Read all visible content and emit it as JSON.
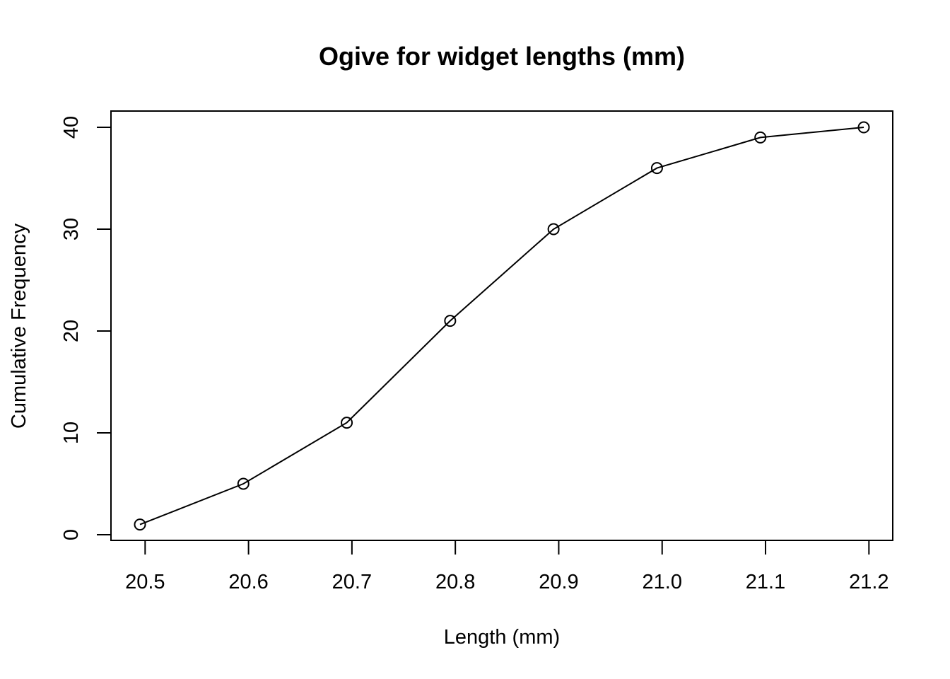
{
  "chart_data": {
    "type": "line",
    "title": "Ogive for widget lengths (mm)",
    "xlabel": "Length (mm)",
    "ylabel": "Cumulative Frequency",
    "x_ticks": [
      "20.5",
      "20.6",
      "20.7",
      "20.8",
      "20.9",
      "21.0",
      "21.1",
      "21.2"
    ],
    "y_ticks": [
      "0",
      "10",
      "20",
      "30",
      "40"
    ],
    "xlim": [
      20.467,
      21.222
    ],
    "ylim": [
      0,
      40
    ],
    "grid": false,
    "marker": "open-circle",
    "line_color": "#000000",
    "series": [
      {
        "x": [
          20.495,
          20.595,
          20.695,
          20.795,
          20.895,
          20.995,
          21.095,
          21.195
        ],
        "y": [
          1,
          5,
          11,
          21,
          30,
          36,
          39,
          40
        ]
      }
    ]
  }
}
